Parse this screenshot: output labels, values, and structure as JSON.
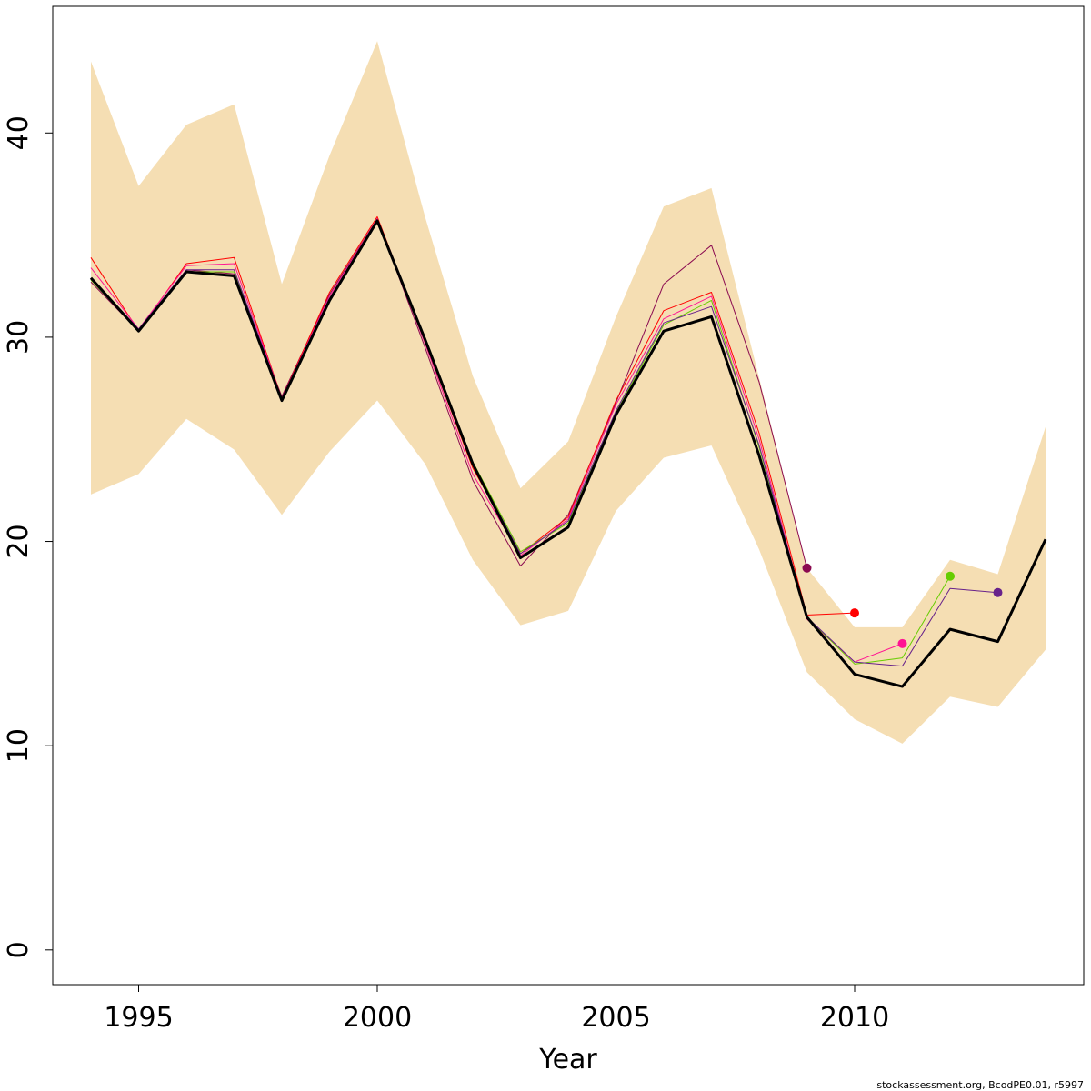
{
  "chart_data": {
    "type": "line",
    "title": "",
    "xlabel": "Year",
    "ylabel": "",
    "xlim": [
      1993.2,
      2014.8
    ],
    "ylim": [
      -1.7,
      46.2
    ],
    "x_ticks": [
      "1995",
      "2000",
      "2005",
      "2010"
    ],
    "y_ticks": [
      "0",
      "10",
      "20",
      "30",
      "40"
    ],
    "footer": "stockassessment.org, BcodPE0.01, r5997",
    "grid": false,
    "legend": "none",
    "band": {
      "color": "#F5DEB3",
      "years": [
        1994,
        1995,
        1996,
        1997,
        1998,
        1999,
        2000,
        2001,
        2002,
        2003,
        2004,
        2005,
        2006,
        2007,
        2008,
        2009,
        2010,
        2011,
        2012,
        2013,
        2014
      ],
      "upper": [
        43.5,
        37.4,
        40.4,
        41.4,
        32.6,
        38.9,
        44.5,
        35.9,
        28.1,
        22.6,
        24.9,
        31.0,
        36.4,
        37.3,
        28.0,
        18.7,
        15.8,
        15.8,
        19.1,
        18.4,
        25.6
      ],
      "lower": [
        22.3,
        23.3,
        26.0,
        24.5,
        21.3,
        24.4,
        26.9,
        23.8,
        19.1,
        15.9,
        16.6,
        21.5,
        24.1,
        24.7,
        19.6,
        13.6,
        11.3,
        10.1,
        12.4,
        11.9,
        14.7
      ]
    },
    "series": [
      {
        "color": "#000000",
        "width": 3,
        "point": false,
        "x": [
          1994,
          1995,
          1996,
          1997,
          1998,
          1999,
          2000,
          2001,
          2002,
          2003,
          2004,
          2005,
          2006,
          2007,
          2008,
          2009,
          2010,
          2011,
          2012,
          2013,
          2014
        ],
        "y": [
          32.9,
          30.3,
          33.2,
          33.0,
          26.9,
          31.8,
          35.7,
          29.9,
          23.8,
          19.2,
          20.7,
          26.2,
          30.3,
          31.0,
          24.2,
          16.3,
          13.5,
          12.9,
          15.7,
          15.1,
          20.1
        ]
      },
      {
        "color": "#8B0A50",
        "width": 1,
        "point": true,
        "x": [
          1994,
          1995,
          1996,
          1997,
          1998,
          1999,
          2000,
          2001,
          2002,
          2003,
          2004,
          2005,
          2006,
          2007,
          2008,
          2009
        ],
        "y": [
          32.7,
          30.3,
          33.3,
          33.1,
          27.1,
          32.1,
          35.8,
          29.5,
          23.0,
          18.8,
          21.3,
          26.8,
          32.6,
          34.5,
          27.8,
          18.7
        ]
      },
      {
        "color": "#FF0000",
        "width": 1,
        "point": true,
        "x": [
          1994,
          1995,
          1996,
          1997,
          1998,
          1999,
          2000,
          2001,
          2002,
          2003,
          2004,
          2005,
          2006,
          2007,
          2008,
          2009,
          2010
        ],
        "y": [
          33.9,
          30.3,
          33.6,
          33.9,
          27.0,
          32.2,
          35.9,
          29.8,
          23.6,
          19.4,
          21.2,
          26.9,
          31.3,
          32.2,
          25.3,
          16.4,
          16.5
        ]
      },
      {
        "color": "#FF1493",
        "width": 1,
        "point": true,
        "x": [
          1994,
          1995,
          1996,
          1997,
          1998,
          1999,
          2000,
          2001,
          2002,
          2003,
          2004,
          2005,
          2006,
          2007,
          2008,
          2009,
          2010,
          2011
        ],
        "y": [
          33.4,
          30.4,
          33.5,
          33.6,
          27.0,
          32.0,
          35.8,
          29.7,
          23.3,
          19.3,
          21.1,
          26.7,
          30.9,
          32.0,
          25.0,
          16.2,
          14.1,
          15.0
        ]
      },
      {
        "color": "#66CD00",
        "width": 1,
        "point": true,
        "x": [
          1994,
          1995,
          1996,
          1997,
          1998,
          1999,
          2000,
          2001,
          2002,
          2003,
          2004,
          2005,
          2006,
          2007,
          2008,
          2009,
          2010,
          2011,
          2012
        ],
        "y": [
          32.8,
          30.3,
          33.2,
          33.2,
          26.9,
          31.9,
          35.7,
          30.0,
          23.9,
          19.5,
          20.9,
          26.3,
          30.6,
          31.8,
          24.6,
          16.3,
          14.0,
          14.3,
          18.3
        ]
      },
      {
        "color": "#68228B",
        "width": 1,
        "point": true,
        "x": [
          1994,
          1995,
          1996,
          1997,
          1998,
          1999,
          2000,
          2001,
          2002,
          2003,
          2004,
          2005,
          2006,
          2007,
          2008,
          2009,
          2010,
          2011,
          2012,
          2013
        ],
        "y": [
          32.9,
          30.4,
          33.3,
          33.3,
          27.0,
          31.9,
          35.7,
          29.9,
          23.8,
          19.4,
          21.0,
          26.4,
          30.7,
          31.5,
          24.7,
          16.3,
          14.1,
          13.9,
          17.7,
          17.5
        ]
      }
    ]
  }
}
